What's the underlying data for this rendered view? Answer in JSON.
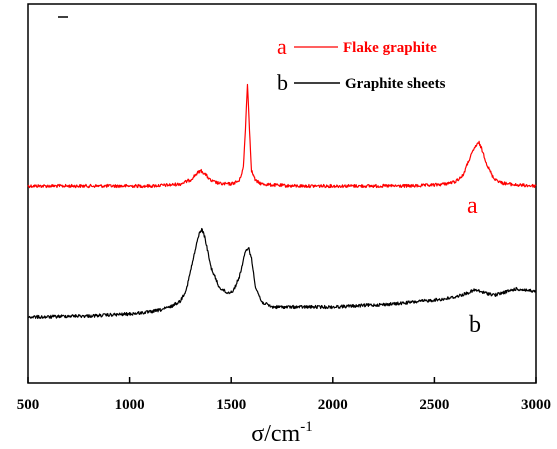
{
  "chart_data": {
    "type": "line",
    "title": "",
    "xlabel": "σ/cm",
    "xlabel_superscript": "-1",
    "ylabel": "",
    "xlim": [
      500,
      3000
    ],
    "x_ticks": [
      500,
      1000,
      1500,
      2000,
      2500,
      3000
    ],
    "x_tick_labels": [
      "500",
      "1000",
      "1500",
      "2000",
      "2500",
      "3000"
    ],
    "y_ticks_shown": false,
    "grid": false,
    "legend_position": "top-right",
    "series": [
      {
        "name": "Flake graphite",
        "legend_letter": "a",
        "curve_label": "a",
        "color": "#ff0000",
        "x": [
          500,
          600,
          700,
          800,
          900,
          1000,
          1100,
          1200,
          1250,
          1300,
          1330,
          1350,
          1370,
          1400,
          1450,
          1500,
          1540,
          1560,
          1570,
          1580,
          1590,
          1600,
          1620,
          1650,
          1700,
          1800,
          1900,
          2000,
          2100,
          2200,
          2300,
          2400,
          2500,
          2550,
          2600,
          2640,
          2670,
          2700,
          2720,
          2740,
          2760,
          2790,
          2830,
          2900,
          3000
        ],
        "y": [
          0.0,
          0.0,
          0.0,
          0.0,
          0.0,
          0.0,
          0.0,
          0.01,
          0.02,
          0.06,
          0.12,
          0.15,
          0.12,
          0.05,
          0.02,
          0.02,
          0.05,
          0.18,
          0.55,
          1.0,
          0.55,
          0.15,
          0.05,
          0.02,
          0.01,
          0.0,
          0.0,
          0.0,
          0.0,
          0.0,
          0.0,
          0.0,
          0.01,
          0.02,
          0.04,
          0.1,
          0.25,
          0.38,
          0.42,
          0.32,
          0.2,
          0.08,
          0.03,
          0.01,
          0.0
        ]
      },
      {
        "name": "Graphite sheets",
        "legend_letter": "b",
        "curve_label": "b",
        "color": "#000000",
        "x": [
          500,
          600,
          700,
          800,
          900,
          1000,
          1100,
          1150,
          1200,
          1250,
          1280,
          1310,
          1340,
          1355,
          1370,
          1400,
          1440,
          1480,
          1510,
          1540,
          1570,
          1585,
          1600,
          1620,
          1650,
          1700,
          1800,
          1900,
          2000,
          2100,
          2200,
          2300,
          2400,
          2500,
          2550,
          2600,
          2650,
          2700,
          2750,
          2800,
          2850,
          2900,
          2950,
          3000
        ],
        "y": [
          0.0,
          0.0,
          0.01,
          0.01,
          0.02,
          0.03,
          0.05,
          0.07,
          0.1,
          0.16,
          0.28,
          0.55,
          0.82,
          0.88,
          0.8,
          0.5,
          0.3,
          0.24,
          0.26,
          0.4,
          0.65,
          0.7,
          0.58,
          0.3,
          0.15,
          0.1,
          0.1,
          0.1,
          0.1,
          0.11,
          0.12,
          0.13,
          0.15,
          0.17,
          0.18,
          0.2,
          0.23,
          0.27,
          0.24,
          0.22,
          0.25,
          0.28,
          0.27,
          0.25
        ]
      }
    ]
  }
}
